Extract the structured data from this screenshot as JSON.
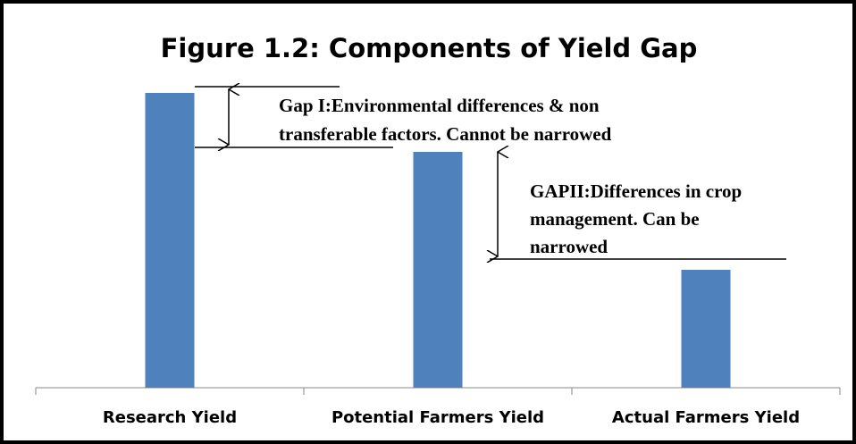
{
  "chart_data": {
    "type": "bar",
    "title": "Figure 1.2: Components of Yield Gap",
    "categories": [
      "Research Yield",
      "Potential Farmers Yield",
      "Actual Farmers Yield"
    ],
    "values": [
      100,
      80,
      40
    ],
    "color": "#4f81bd",
    "ylim": [
      0,
      100
    ],
    "annotations": [
      [
        "Gap I:Environmental differences & non",
        "transferable factors. Cannot be narrowed"
      ],
      [
        "GAPII:Differences in crop",
        "management. Can be",
        "narrowed"
      ]
    ]
  }
}
